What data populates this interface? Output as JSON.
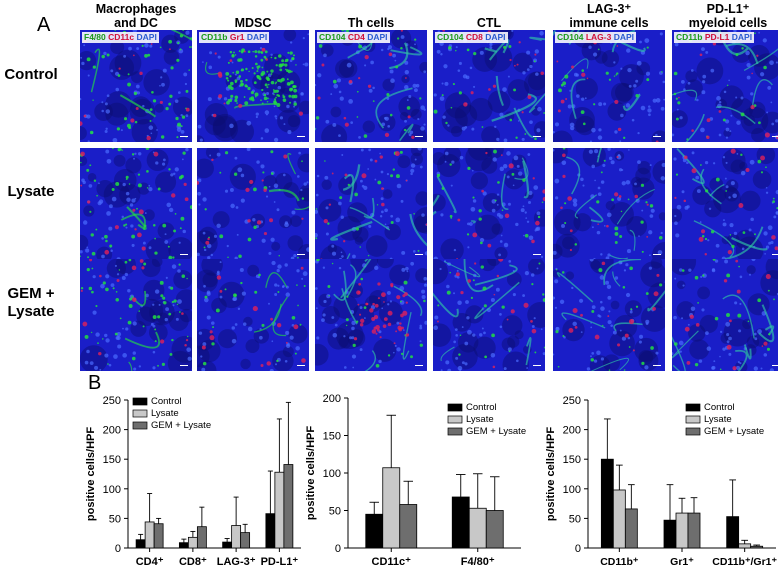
{
  "panel_a": {
    "letter": "A",
    "columns": [
      {
        "title": [
          "Macrophages",
          "and DC"
        ],
        "stains": [
          [
            "F4/80",
            "g"
          ],
          [
            "CD11c",
            "r"
          ],
          [
            "DAPI",
            "b"
          ]
        ]
      },
      {
        "title": [
          "MDSC"
        ],
        "stains": [
          [
            "CD11b",
            "g"
          ],
          [
            "Gr1",
            "r"
          ],
          [
            "DAPI",
            "b"
          ]
        ]
      },
      {
        "title": [
          "Th cells"
        ],
        "stains": [
          [
            "CD104",
            "g"
          ],
          [
            "CD4",
            "r"
          ],
          [
            "DAPI",
            "b"
          ]
        ]
      },
      {
        "title": [
          "CTL"
        ],
        "stains": [
          [
            "CD104",
            "g"
          ],
          [
            "CD8",
            "r"
          ],
          [
            "DAPI",
            "b"
          ]
        ]
      },
      {
        "title": [
          "LAG-3⁺",
          "immune cells"
        ],
        "stains": [
          [
            "CD104",
            "g"
          ],
          [
            "LAG-3",
            "r"
          ],
          [
            "DAPI",
            "b"
          ]
        ]
      },
      {
        "title": [
          "PD-L1⁺",
          "myeloid cells"
        ],
        "stains": [
          [
            "CD11b",
            "g"
          ],
          [
            "PD-L1",
            "r"
          ],
          [
            "DAPI",
            "b"
          ]
        ]
      }
    ],
    "rows": [
      {
        "label": [
          "Control"
        ]
      },
      {
        "label": [
          "Lysate"
        ]
      },
      {
        "label": [
          "GEM +",
          "Lysate"
        ]
      }
    ]
  },
  "panel_b": {
    "letter": "B"
  },
  "colors": {
    "control": "#000000",
    "lysate": "#c8c8c8",
    "gem_lysate": "#6e6e6e",
    "dapi": "#1a1ec8",
    "green": "#22dd44",
    "red": "#e0205a"
  },
  "chart_data": [
    {
      "type": "bar",
      "categories": [
        "CD4⁺",
        "CD8⁺",
        "LAG-3⁺",
        "PD-L1⁺"
      ],
      "ylabel": "positive cells/HPF",
      "ylim": [
        0,
        250
      ],
      "yticks": [
        0,
        50,
        100,
        150,
        200,
        250
      ],
      "legend_position": "top-left",
      "series": [
        {
          "name": "Control",
          "values": [
            14,
            9,
            10,
            58
          ],
          "errors": [
            9,
            6,
            6,
            72
          ]
        },
        {
          "name": "Lysate",
          "values": [
            44,
            18,
            38,
            128
          ],
          "errors": [
            48,
            10,
            48,
            90
          ]
        },
        {
          "name": "GEM + Lysate",
          "values": [
            41,
            36,
            26,
            141
          ],
          "errors": [
            9,
            33,
            14,
            105
          ]
        }
      ]
    },
    {
      "type": "bar",
      "categories": [
        "CD11c⁺",
        "F4/80⁺"
      ],
      "ylabel": "positive cells/HPF",
      "ylim": [
        0,
        200
      ],
      "yticks": [
        0,
        50,
        100,
        150,
        200
      ],
      "legend_position": "top-right",
      "series": [
        {
          "name": "Control",
          "values": [
            45,
            68
          ],
          "errors": [
            16,
            30
          ]
        },
        {
          "name": "Lysate",
          "values": [
            107,
            53
          ],
          "errors": [
            70,
            46
          ]
        },
        {
          "name": "GEM + Lysate",
          "values": [
            58,
            50
          ],
          "errors": [
            31,
            45
          ]
        }
      ]
    },
    {
      "type": "bar",
      "categories": [
        "CD11b⁺",
        "Gr1⁺",
        "CD11b⁺/Gr1⁺"
      ],
      "ylabel": "positive cells/HPF",
      "ylim": [
        0,
        250
      ],
      "yticks": [
        0,
        50,
        100,
        150,
        200,
        250
      ],
      "legend_position": "top-right",
      "series": [
        {
          "name": "Control",
          "values": [
            150,
            47,
            53
          ],
          "errors": [
            68,
            60,
            62
          ]
        },
        {
          "name": "Lysate",
          "values": [
            98,
            59,
            7
          ],
          "errors": [
            42,
            25,
            6
          ]
        },
        {
          "name": "GEM + Lysate",
          "values": [
            66,
            59,
            3
          ],
          "errors": [
            41,
            26,
            2
          ]
        }
      ]
    }
  ]
}
